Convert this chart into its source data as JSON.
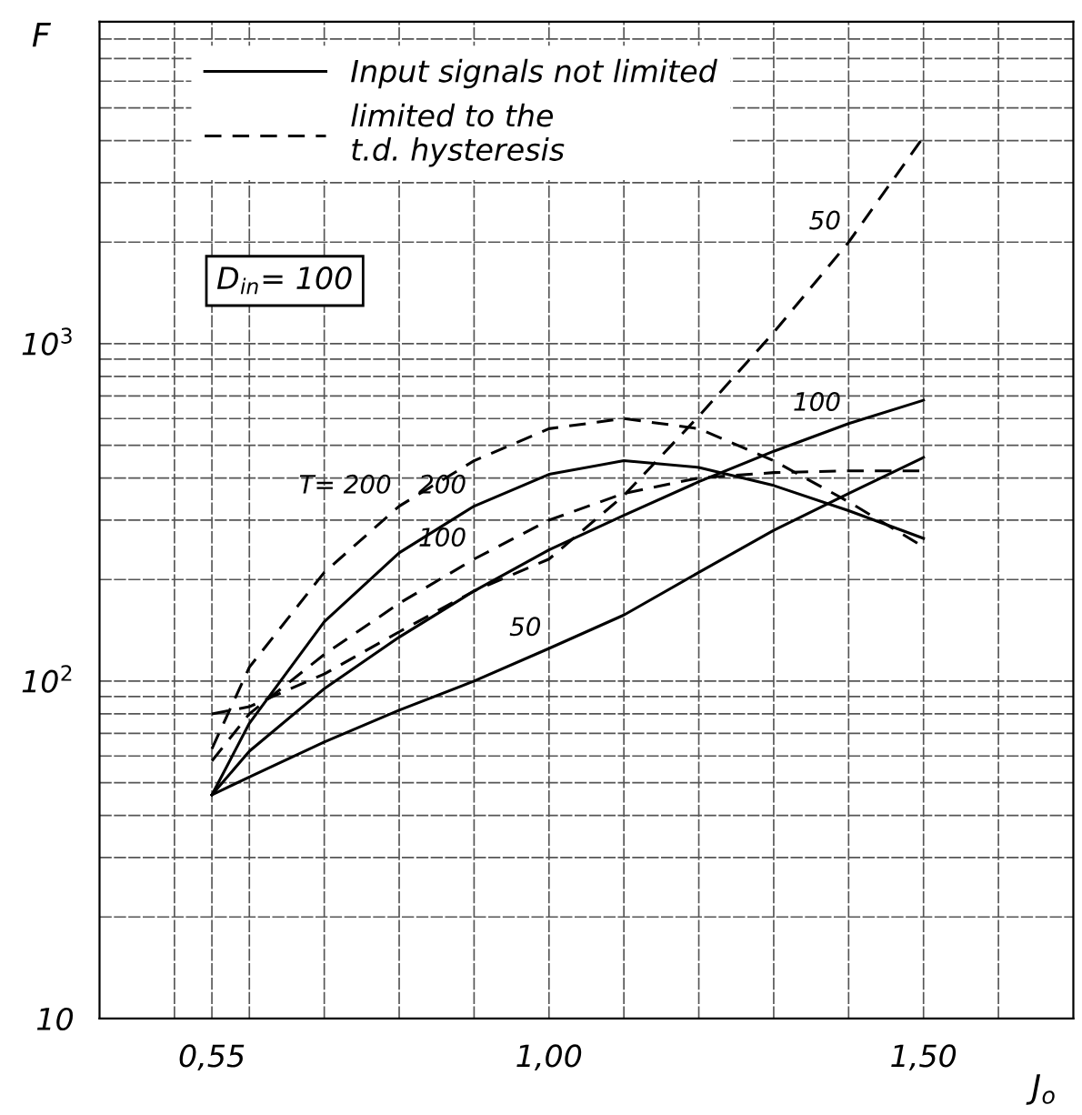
{
  "chart_data": {
    "type": "line",
    "xlabel": "J$_{o}$",
    "ylabel": "F",
    "x": [
      0.55,
      0.6,
      0.7,
      0.8,
      0.9,
      1.0,
      1.1,
      1.2,
      1.3,
      1.4,
      1.5
    ],
    "series": [
      {
        "name": "Input signals not limited",
        "color": "#000000",
        "line_style": "solid",
        "values": [
          46,
          75,
          150,
          240,
          330,
          410,
          450,
          430,
          380,
          320,
          265
        ]
      },
      {
        "color": "#000000",
        "line_style": "solid",
        "values": [
          46,
          62,
          95,
          135,
          185,
          245,
          310,
          390,
          480,
          580,
          680
        ]
      },
      {
        "color": "#000000",
        "line_style": "solid",
        "values": [
          46,
          52,
          66,
          82,
          100,
          125,
          157,
          210,
          280,
          360,
          460
        ]
      },
      {
        "name": "limited to the\nt.d. hysteresis",
        "color": "#000000",
        "line_style": "dashed",
        "values": [
          63,
          110,
          210,
          330,
          450,
          560,
          600,
          560,
          450,
          340,
          250
        ]
      },
      {
        "color": "#000000",
        "line_style": "dashed",
        "values": [
          58,
          80,
          120,
          170,
          230,
          300,
          360,
          400,
          415,
          420,
          420
        ]
      },
      {
        "color": "#000000",
        "line_style": "dashed",
        "values": [
          80,
          84,
          105,
          140,
          185,
          230,
          355,
          610,
          1080,
          2000,
          4100
        ]
      }
    ],
    "log": "y",
    "marker": "none",
    "grid": true,
    "legend": "top left",
    "xlim": [
      0.4,
      1.7
    ],
    "xticks": [
      {
        "value": 0.5,
        "label": null
      },
      {
        "value": 0.55,
        "label": "0,55"
      },
      {
        "value": 0.6,
        "label": null
      },
      {
        "value": 0.7,
        "label": null
      },
      {
        "value": 0.8,
        "label": null
      },
      {
        "value": 0.9,
        "label": null
      },
      {
        "value": 1.0,
        "label": "1,00"
      },
      {
        "value": 1.1,
        "label": null
      },
      {
        "value": 1.2,
        "label": null
      },
      {
        "value": 1.3,
        "label": null
      },
      {
        "value": 1.4,
        "label": null
      },
      {
        "value": 1.5,
        "label": "1,50"
      },
      {
        "value": 1.6,
        "label": null
      }
    ],
    "ylim": [
      10,
      9000
    ],
    "yticks": [
      10,
      {
        "value": 20,
        "label": null
      },
      {
        "value": 30,
        "label": null
      },
      {
        "value": 40,
        "label": null
      },
      {
        "value": 50,
        "label": null
      },
      {
        "value": 60,
        "label": null
      },
      {
        "value": 70,
        "label": null
      },
      {
        "value": 80,
        "label": null
      },
      {
        "value": 90,
        "label": null
      },
      {
        "value": 100,
        "label": "10$^{2}$"
      },
      {
        "value": 200,
        "label": null
      },
      {
        "value": 300,
        "label": null
      },
      {
        "value": 400,
        "label": null
      },
      {
        "value": 500,
        "label": null
      },
      {
        "value": 600,
        "label": null
      },
      {
        "value": 700,
        "label": null
      },
      {
        "value": 800,
        "label": null
      },
      {
        "value": 900,
        "label": null
      },
      {
        "value": 1000,
        "label": "10$^{3}$"
      },
      {
        "value": 2000,
        "label": null
      },
      {
        "value": 3000,
        "label": null
      },
      {
        "value": 4000,
        "label": null
      },
      {
        "value": 5000,
        "label": null
      },
      {
        "value": 6000,
        "label": null
      },
      {
        "value": 7000,
        "label": null
      },
      {
        "value": 8000,
        "label": null
      }
    ],
    "annotations": [
      "D$_{in}$= 100",
      {
        "text": "T= 200",
        "x": 0.8,
        "y": 330
      },
      {
        "text": "200",
        "x": 0.9,
        "y": 330
      },
      {
        "text": "100",
        "x": 0.9,
        "y": 230
      },
      {
        "text": "100",
        "x": 1.4,
        "y": 580
      },
      {
        "text": "50",
        "x": 1.0,
        "y": 125
      },
      {
        "text": "50",
        "x": 1.4,
        "y": 2000
      }
    ]
  }
}
